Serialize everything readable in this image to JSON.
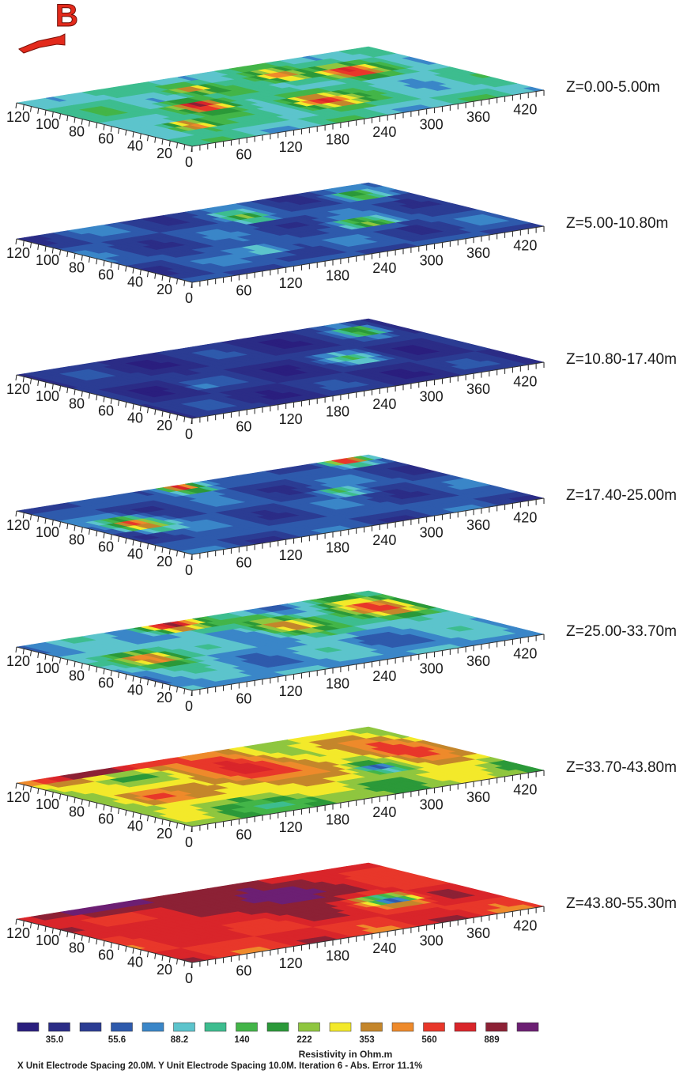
{
  "header": {
    "marker_letter": "B"
  },
  "chart_data": {
    "type": "heatmap",
    "quantity": "Resistivity in Ohm.m",
    "x_axis_ticks": [
      "0",
      "60",
      "120",
      "180",
      "240",
      "300",
      "360",
      "420"
    ],
    "y_axis_ticks": [
      "120",
      "100",
      "80",
      "60",
      "40",
      "20"
    ],
    "layers": [
      {
        "label": "Z=0.00-5.00m"
      },
      {
        "label": "Z=5.00-10.80m"
      },
      {
        "label": "Z=10.80-17.40m"
      },
      {
        "label": "Z=17.40-25.00m"
      },
      {
        "label": "Z=25.00-33.70m"
      },
      {
        "label": "Z=33.70-43.80m"
      },
      {
        "label": "Z=43.80-55.30m"
      }
    ],
    "colorscale": [
      "#2a1e7e",
      "#2b2c86",
      "#2b3c93",
      "#2e5aac",
      "#3a86c8",
      "#5cc4cc",
      "#3dbd8f",
      "#43b548",
      "#2b9939",
      "#8fc63f",
      "#f3e92a",
      "#c4862b",
      "#ee8a2b",
      "#e8372a",
      "#d9252a",
      "#8c2135",
      "#6c1f73"
    ],
    "colorscale_tick_labels": [
      "35.0",
      "55.6",
      "88.2",
      "140",
      "222",
      "353",
      "560",
      "889"
    ],
    "colorscale_label": "Resistivity in Ohm.m"
  },
  "footer": {
    "text": "X Unit Electrode Spacing 20.0M.  Y Unit Electrode Spacing 10.0M.    Iteration 6 - Abs. Error 11.1%"
  }
}
